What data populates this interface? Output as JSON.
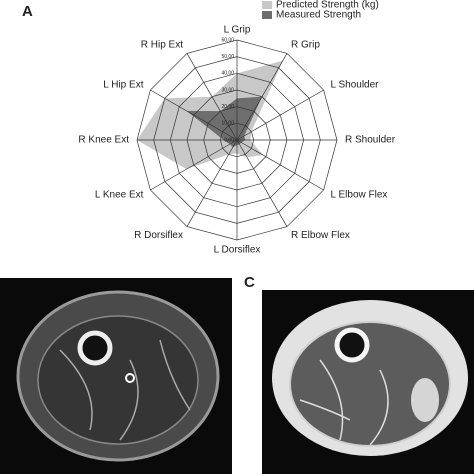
{
  "chart_data": {
    "type": "radar",
    "categories": [
      "L Grip",
      "R Grip",
      "L Shoulder",
      "R Shoulder",
      "L Elbow Flex",
      "R Elbow Flex",
      "L Dorsiflex",
      "R Dorsiflex",
      "L Knee Ext",
      "R Knee Ext",
      "L Hip Ext",
      "R Hip Ext"
    ],
    "series": [
      {
        "name": "Predicted Strength (kg)",
        "color": "#c8c8c8",
        "values": [
          40,
          55,
          10,
          8,
          18,
          12,
          8,
          10,
          35,
          60,
          50,
          30
        ]
      },
      {
        "name": "Measured Strength",
        "color": "#6e6e6e",
        "values": [
          25,
          30,
          5,
          5,
          3,
          3,
          3,
          5,
          5,
          8,
          35,
          20
        ]
      }
    ],
    "rlim": [
      0,
      60
    ],
    "rticks": [
      {
        "value": 0,
        "label": "0,00"
      },
      {
        "value": 10,
        "label": "10,00"
      },
      {
        "value": 20,
        "label": "20,00"
      },
      {
        "value": 30,
        "label": "30,00"
      },
      {
        "value": 40,
        "label": "40,00"
      },
      {
        "value": 50,
        "label": "50,00"
      },
      {
        "value": 60,
        "label": "60,00"
      }
    ],
    "legend": "top-right"
  },
  "panel_labels": [
    "A",
    "C"
  ]
}
